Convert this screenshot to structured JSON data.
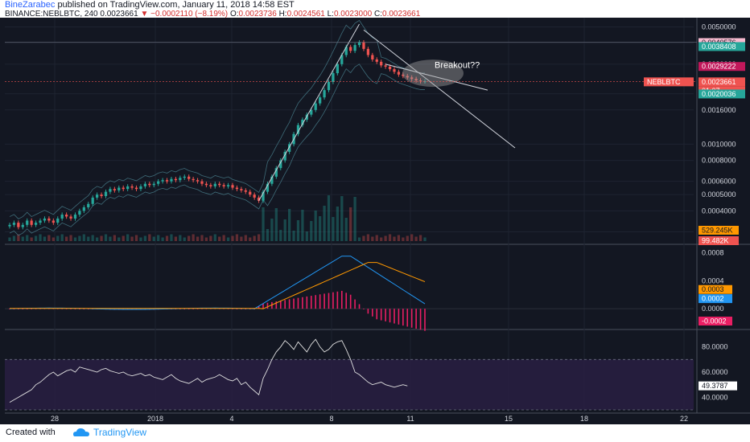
{
  "header": {
    "author": "BineZarabec",
    "published_text": "published on TradingView.com, January 11, 2018 14:58 EST",
    "symbol": "BINANCE:NEBLBTC, 240",
    "last": "0.0023661",
    "change": "−0.0002110 (−8.19%)",
    "open_label": "O:",
    "open": "0.0023736",
    "high_label": "H:",
    "high": "0.0024561",
    "low_label": "L:",
    "low": "0.0023000",
    "close_label": "C:",
    "close": "0.0023661"
  },
  "footer": {
    "created_with": "Created with",
    "brand": "TradingView"
  },
  "colors": {
    "up": "#26a69a",
    "down": "#ef5350",
    "bg": "#131722",
    "macd": "#2196f3",
    "signal": "#ff9800",
    "hist": "#e91e63",
    "rsi": "#e0e0e0",
    "rsi_band": "#2a1f45"
  },
  "chart_data": [
    {
      "type": "candlestick",
      "scale": "log",
      "ylim": [
        0.00027,
        0.0052
      ],
      "price_ticks": [
        "0.0050000",
        "0.0040000",
        "0.0030000",
        "0.0020000",
        "0.0016000",
        "0.0010000",
        "0.0008000",
        "0.0006000",
        "0.0005000",
        "0.0004000",
        "0.0003000"
      ],
      "x_ticks": [
        "28",
        "2018",
        "4",
        "8",
        "11",
        "15",
        "18",
        "22"
      ],
      "symbol_tag": "NEBLBTC",
      "price_tags": [
        {
          "label": "0.0040576",
          "color": "#f8bbd0",
          "text": "#131722"
        },
        {
          "label": "0.0038408",
          "color": "#26a69a",
          "text": "#ffffff"
        },
        {
          "label": "0.0029222",
          "color": "#c2185b",
          "text": "#ffffff"
        },
        {
          "label": "0.0023661",
          "color": "#ef5350",
          "text": "#ffffff"
        },
        {
          "label": "01:07",
          "color": "#ef5350",
          "text": "#ffffff"
        },
        {
          "label": "0.0020036",
          "color": "#26a69a",
          "text": "#ffffff"
        }
      ],
      "volume_tags": [
        {
          "label": "529.245K",
          "color": "#ff9800",
          "text": "#131722"
        },
        {
          "label": "99.482K",
          "color": "#ef5350",
          "text": "#ffffff"
        }
      ],
      "annotation": "Breakout??",
      "closes": [
        0.00033,
        0.00034,
        0.00032,
        0.00033,
        0.00035,
        0.00033,
        0.00034,
        0.00035,
        0.00036,
        0.00035,
        0.00034,
        0.00036,
        0.00038,
        0.00037,
        0.00036,
        0.00038,
        0.0004,
        0.00042,
        0.00044,
        0.00048,
        0.0005,
        0.00049,
        0.00052,
        0.00054,
        0.00053,
        0.00055,
        0.00054,
        0.00056,
        0.00055,
        0.00054,
        0.00056,
        0.00058,
        0.00057,
        0.00058,
        0.0006,
        0.00061,
        0.0006,
        0.00062,
        0.00061,
        0.00063,
        0.00064,
        0.00062,
        0.00061,
        0.0006,
        0.00058,
        0.00057,
        0.00056,
        0.00058,
        0.00057,
        0.00056,
        0.00057,
        0.00055,
        0.00054,
        0.00053,
        0.00052,
        0.0005,
        0.00048,
        0.00046,
        0.00052,
        0.00058,
        0.00064,
        0.00072,
        0.0008,
        0.0009,
        0.001,
        0.00115,
        0.0013,
        0.0014,
        0.0015,
        0.0016,
        0.00175,
        0.0019,
        0.0021,
        0.00235,
        0.00265,
        0.003,
        0.0034,
        0.0038,
        0.0036,
        0.0039,
        0.00405,
        0.0037,
        0.0034,
        0.0032,
        0.0031,
        0.00295,
        0.0029,
        0.0028,
        0.0027,
        0.0026,
        0.00255,
        0.0025,
        0.00245,
        0.0024,
        0.00237,
        0.00237
      ]
    },
    {
      "type": "line",
      "title": "MACD",
      "ylim": [
        -0.00025,
        0.00085
      ],
      "ticks": [
        "0.0008",
        "0.0004",
        "0.0000"
      ],
      "tags": [
        {
          "label": "0.0003",
          "color": "#ff9800",
          "text": "#131722"
        },
        {
          "label": "0.0002",
          "color": "#2196f3",
          "text": "#ffffff"
        },
        {
          "label": "-0.0002",
          "color": "#e91e63",
          "text": "#ffffff"
        }
      ]
    },
    {
      "type": "line",
      "title": "RSI",
      "ylim": [
        30,
        90
      ],
      "ticks": [
        "80.0000",
        "60.0000",
        "40.0000"
      ],
      "bands": [
        70,
        30
      ],
      "last_label": "49.3787",
      "values": [
        36,
        38,
        40,
        42,
        44,
        46,
        50,
        52,
        55,
        58,
        60,
        57,
        59,
        61,
        62,
        60,
        64,
        63,
        62,
        61,
        60,
        62,
        63,
        61,
        60,
        59,
        60,
        58,
        57,
        58,
        59,
        57,
        58,
        56,
        55,
        54,
        56,
        58,
        55,
        53,
        52,
        51,
        53,
        55,
        52,
        54,
        55,
        56,
        58,
        56,
        54,
        53,
        55,
        50,
        52,
        48,
        45,
        42,
        55,
        62,
        70,
        76,
        80,
        85,
        82,
        78,
        84,
        80,
        76,
        82,
        86,
        80,
        76,
        78,
        82,
        84,
        85,
        78,
        70,
        60,
        58,
        55,
        52,
        50,
        51,
        52,
        50,
        49,
        48,
        49,
        50,
        49
      ]
    }
  ]
}
